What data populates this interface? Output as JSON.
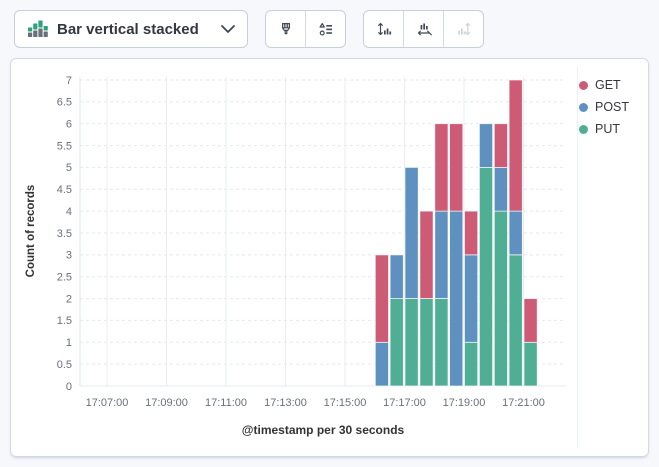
{
  "toolbar": {
    "chart_type_button": {
      "label": "Bar vertical stacked",
      "icon": "bar-vertical-stacked-icon"
    },
    "style_group": [
      {
        "name": "visual-options",
        "icon": "paintbrush-icon",
        "disabled": false
      },
      {
        "name": "value-labels",
        "icon": "list-shapes-icon",
        "disabled": false
      }
    ],
    "axis_group": [
      {
        "name": "left-axis-settings",
        "icon": "vertical-axis-icon",
        "disabled": false
      },
      {
        "name": "bottom-axis-settings",
        "icon": "horizontal-axis-icon",
        "disabled": false
      },
      {
        "name": "right-axis-settings",
        "icon": "right-axis-icon",
        "disabled": true
      }
    ]
  },
  "chart_data": {
    "type": "bar",
    "stacked": true,
    "title": "",
    "xlabel": "@timestamp per 30 seconds",
    "ylabel": "Count of records",
    "ylim": [
      0,
      7
    ],
    "y_tick_step": 0.5,
    "y_tick_labels": [
      "0",
      "0.5",
      "1",
      "1.5",
      "2",
      "2.5",
      "3",
      "3.5",
      "4",
      "4.5",
      "5",
      "5.5",
      "6",
      "6.5",
      "7"
    ],
    "x_tick_labels": [
      "17:07:00",
      "17:09:00",
      "17:11:00",
      "17:13:00",
      "17:15:00",
      "17:17:00",
      "17:19:00",
      "17:21:00"
    ],
    "categories": [
      "17:16:00",
      "17:16:30",
      "17:17:00",
      "17:17:30",
      "17:18:00",
      "17:18:30",
      "17:19:00",
      "17:19:30",
      "17:20:00",
      "17:20:30",
      "17:21:00"
    ],
    "series": [
      {
        "name": "GET",
        "color": "#ce5b76",
        "values": [
          2,
          0,
          0,
          2,
          2,
          2,
          1,
          0,
          1,
          3,
          1
        ]
      },
      {
        "name": "POST",
        "color": "#5e91bf",
        "values": [
          1,
          1,
          3,
          0,
          2,
          4,
          2,
          1,
          1,
          1,
          0
        ]
      },
      {
        "name": "PUT",
        "color": "#4fae94",
        "values": [
          0,
          2,
          2,
          2,
          2,
          0,
          1,
          5,
          4,
          3,
          1
        ]
      }
    ],
    "stack_order_bottom_to_top": [
      "PUT",
      "POST",
      "GET"
    ],
    "grid": true,
    "legend_position": "right"
  },
  "colors": {
    "get": "#ce5b76",
    "post": "#5e91bf",
    "put": "#4fae94",
    "icon_green": "#2da27d",
    "icon_gray": "#69707d",
    "grid_dashed": "#e3e8ef",
    "grid_solid": "#e9edf3",
    "tick_text": "#68707c"
  }
}
